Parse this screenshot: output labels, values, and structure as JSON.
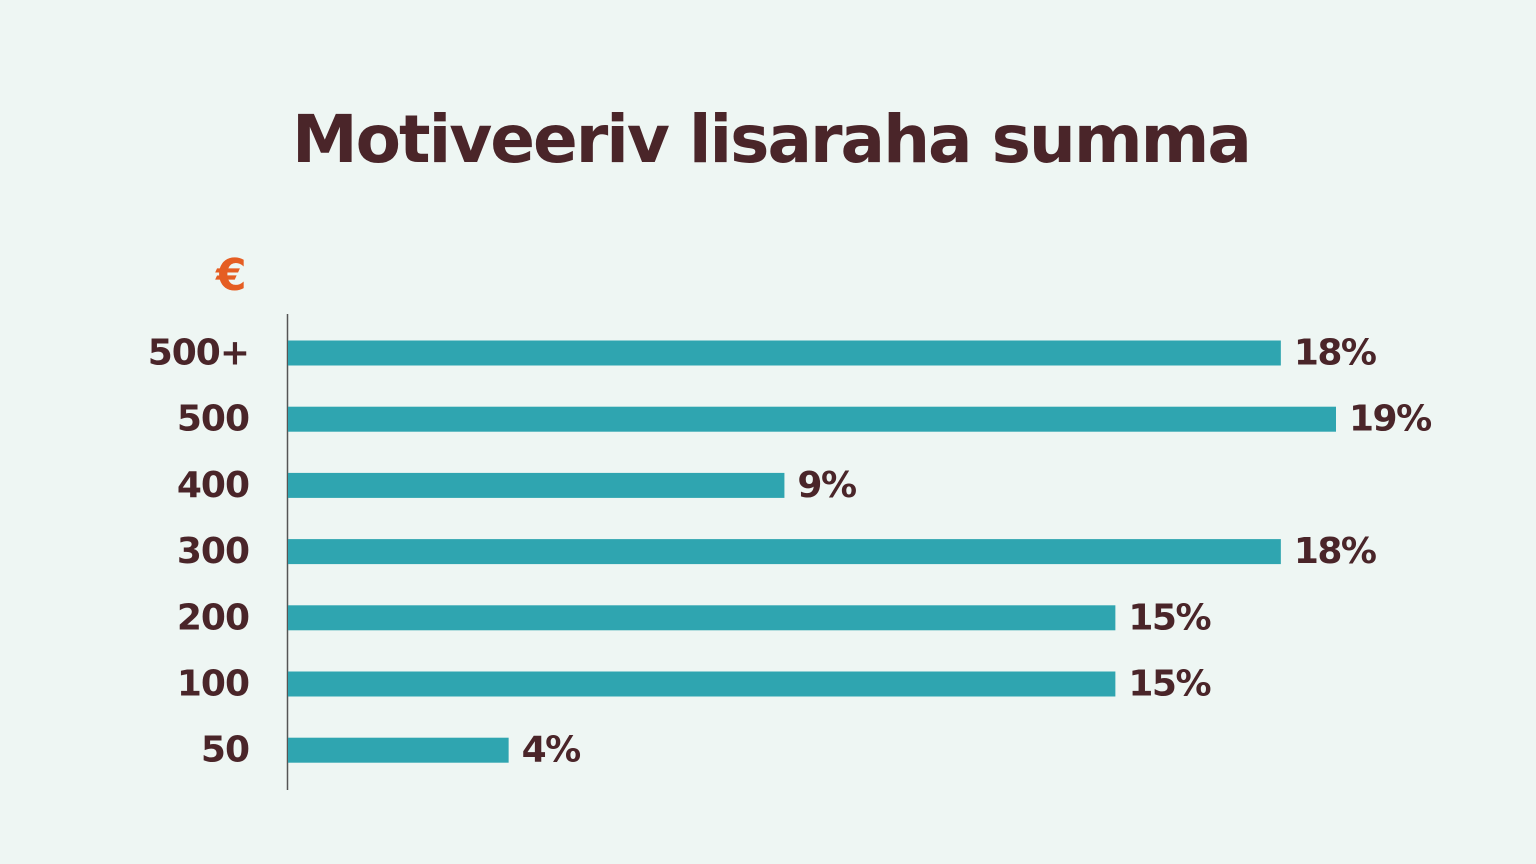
{
  "title": "Motiveeriv lisaraha summa",
  "unit_symbol": "€",
  "colors": {
    "background": "#eef6f3",
    "bar": "#2fa5b0",
    "text": "#4a2529",
    "accent": "#e55d22",
    "axis": "#555555"
  },
  "chart_data": {
    "type": "bar",
    "orientation": "horizontal",
    "title": "Motiveeriv lisaraha summa",
    "ylabel": "€",
    "xlabel": "",
    "categories": [
      "500+",
      "500",
      "400",
      "300",
      "200",
      "100",
      "50"
    ],
    "values": [
      18,
      19,
      9,
      18,
      15,
      15,
      4
    ],
    "value_labels": [
      "18%",
      "19%",
      "9%",
      "18%",
      "15%",
      "15%",
      "4%"
    ],
    "xlim": [
      0,
      19
    ],
    "grid": false,
    "legend": "none"
  }
}
